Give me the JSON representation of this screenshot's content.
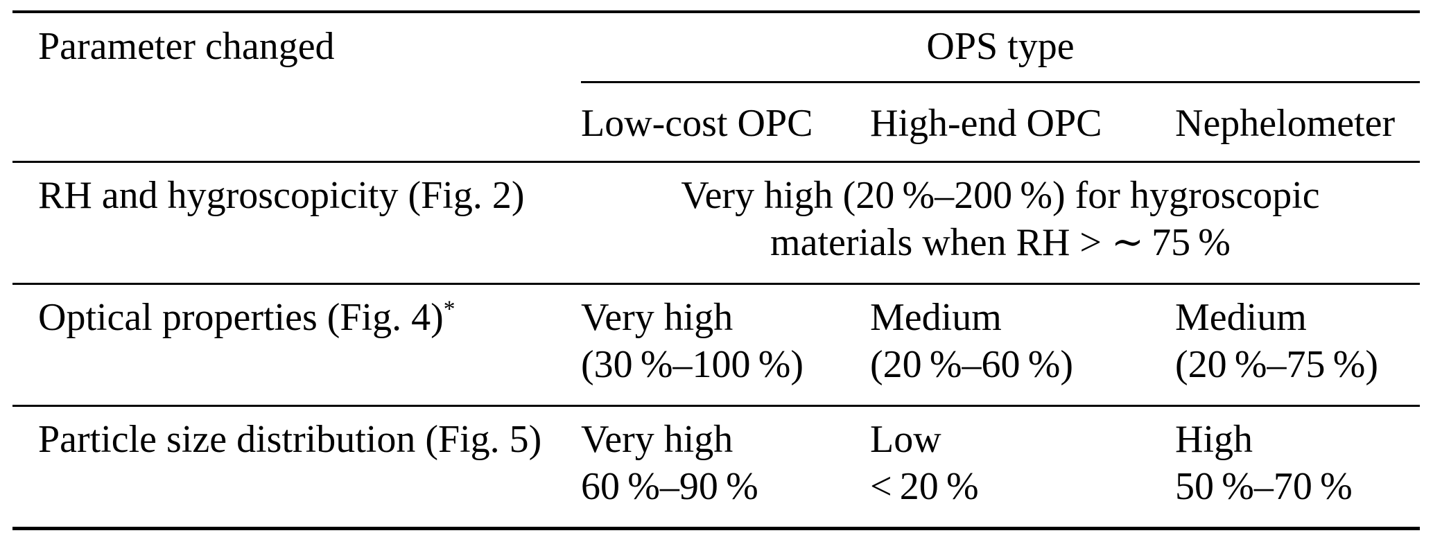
{
  "table": {
    "corner_header": "Parameter changed",
    "group_header": "OPS type",
    "columns": [
      "Low-cost OPC",
      "High-end OPC",
      "Nephelometer"
    ],
    "rows": [
      {
        "label": "RH and hygroscopicity (Fig. 2)",
        "label_sup": "",
        "value_line1": "Very high (20 %–200 %) for hygroscopic",
        "value_line2": "materials when RH > ∼ 75 %"
      },
      {
        "label": "Optical properties (Fig. 4)",
        "label_sup": "*",
        "cells": [
          {
            "line1": "Very high",
            "line2": "(30 %–100 %)"
          },
          {
            "line1": "Medium",
            "line2": "(20 %–60 %)"
          },
          {
            "line1": "Medium",
            "line2": "(20 %–75 %)"
          }
        ]
      },
      {
        "label": "Particle size distribution (Fig. 5)",
        "label_sup": "",
        "cells": [
          {
            "line1": "Very high",
            "line2": "60 %–90 %"
          },
          {
            "line1": "Low",
            "line2": "< 20 %"
          },
          {
            "line1": "High",
            "line2": "50 %–70 %"
          }
        ]
      }
    ],
    "text_color": "#000000",
    "rule_color": "#000000",
    "background_color": "#ffffff"
  }
}
